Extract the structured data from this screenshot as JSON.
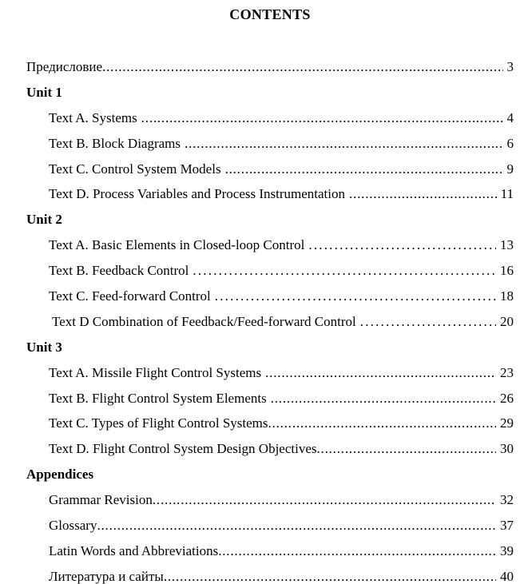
{
  "title": "CONTENTS",
  "toc": [
    {
      "type": "entry",
      "label": "Предисловие",
      "page": "3",
      "leader": "fine",
      "indent": 0,
      "gap_before_dots": false
    },
    {
      "type": "heading",
      "label": "Unit 1"
    },
    {
      "type": "entry",
      "label": "Text A. Systems",
      "page": "4",
      "leader": "fine",
      "indent": 1,
      "gap_before_dots": true
    },
    {
      "type": "entry",
      "label": "Text B. Block Diagrams",
      "page": "6",
      "leader": "fine",
      "indent": 1,
      "gap_before_dots": true
    },
    {
      "type": "entry",
      "label": "Text C. Control System Models",
      "page": "9",
      "leader": "fine",
      "indent": 1,
      "gap_before_dots": true
    },
    {
      "type": "entry",
      "label": "Text D. Process Variables and Process Instrumentation",
      "page": "11",
      "leader": "fine",
      "indent": 1,
      "gap_before_dots": true
    },
    {
      "type": "heading",
      "label": "Unit 2"
    },
    {
      "type": "entry",
      "label": "Text A. Basic Elements in Closed-loop Control",
      "page": "13",
      "leader": "wide",
      "indent": 1,
      "gap_before_dots": true
    },
    {
      "type": "entry",
      "label": "Text B. Feedback Control",
      "page": "16",
      "leader": "wide",
      "indent": 1,
      "gap_before_dots": true
    },
    {
      "type": "entry",
      "label": "Text C. Feed-forward Control",
      "page": "18",
      "leader": "wide",
      "indent": 1,
      "gap_before_dots": true
    },
    {
      "type": "entry",
      "label": "Text D Combination of Feedback/Feed-forward Control",
      "page": "20",
      "leader": "wide",
      "indent": 1,
      "extra_indent": true,
      "gap_before_dots": true
    },
    {
      "type": "heading",
      "label": "Unit 3"
    },
    {
      "type": "entry",
      "label": "Text A. Missile Flight Control Systems",
      "page": "23",
      "leader": "fine",
      "indent": 1,
      "gap_before_dots": true
    },
    {
      "type": "entry",
      "label": "Text B. Flight Control System Elements",
      "page": "26",
      "leader": "fine",
      "indent": 1,
      "gap_before_dots": true
    },
    {
      "type": "entry",
      "label": "Text C. Types of Flight Control Systems",
      "page": "29",
      "leader": "fine",
      "indent": 1,
      "gap_before_dots": false
    },
    {
      "type": "entry",
      "label": "Text D. Flight Control System Design Objectives",
      "page": "30",
      "leader": "fine",
      "indent": 1,
      "gap_before_dots": false
    },
    {
      "type": "heading",
      "label": "Appendices"
    },
    {
      "type": "entry",
      "label": "Grammar Revision",
      "page": "32",
      "leader": "fine",
      "indent": 1,
      "gap_before_dots": false
    },
    {
      "type": "entry",
      "label": "Glossary",
      "page": "37",
      "leader": "fine",
      "indent": 1,
      "gap_before_dots": false
    },
    {
      "type": "entry",
      "label": "Latin Words and Abbreviations",
      "page": "39",
      "leader": "fine",
      "indent": 1,
      "gap_before_dots": false
    },
    {
      "type": "entry",
      "label": "Литература и сайты",
      "page": "40",
      "leader": "fine",
      "indent": 1,
      "gap_before_dots": false
    }
  ]
}
